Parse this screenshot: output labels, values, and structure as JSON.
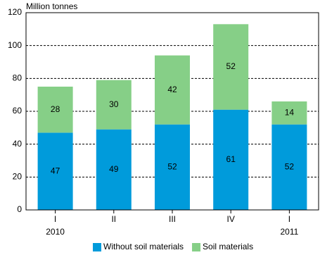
{
  "chart_data": {
    "type": "stacked-bar",
    "y_label": "Million tonnes",
    "categories": [
      "I",
      "II",
      "III",
      "IV",
      "I"
    ],
    "years": [
      "2010",
      null,
      null,
      null,
      "2011"
    ],
    "series": [
      {
        "name": "Without soil materials",
        "color": "#009bdb",
        "values": [
          47,
          49,
          52,
          61,
          52
        ]
      },
      {
        "name": "Soil materials",
        "color": "#86cf87",
        "values": [
          28,
          30,
          42,
          52,
          14
        ]
      }
    ],
    "ylim": [
      0,
      120
    ],
    "yticks": [
      0,
      20,
      40,
      60,
      80,
      100,
      120
    ],
    "grid": true,
    "legend": "bottom"
  }
}
